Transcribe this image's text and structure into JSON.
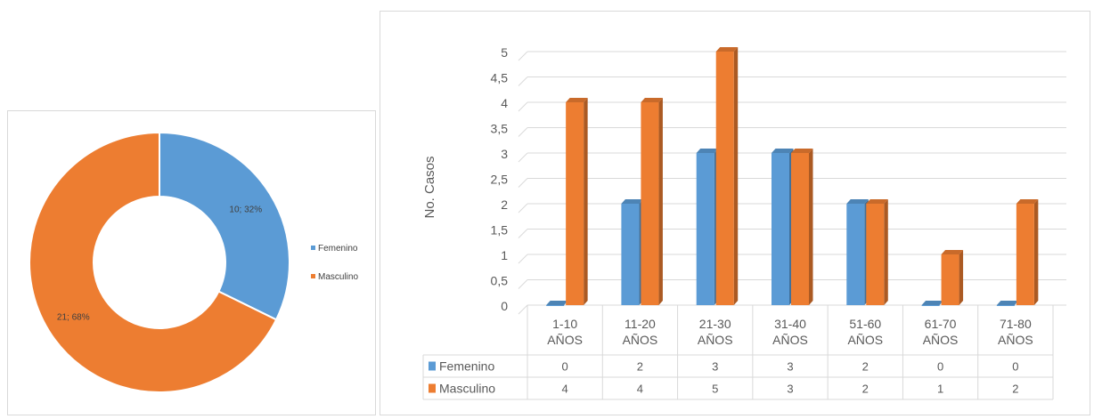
{
  "chart_data": [
    {
      "type": "pie",
      "donut": true,
      "categories": [
        "Femenino",
        "Masculino"
      ],
      "values": [
        10,
        21
      ],
      "data_labels": [
        "10; 32%",
        "21; 68%"
      ],
      "legend_position": "right",
      "colors": [
        "#5b9bd5",
        "#ed7d31"
      ]
    },
    {
      "type": "bar",
      "style": "3d-clustered-column",
      "categories": [
        "1-10 AÑOS",
        "11-20 AÑOS",
        "21-30 AÑOS",
        "31-40 AÑOS",
        "51-60 AÑOS",
        "61-70 AÑOS",
        "71-80 AÑOS"
      ],
      "category_lines": [
        [
          "1-10",
          "AÑOS"
        ],
        [
          "11-20",
          "AÑOS"
        ],
        [
          "21-30",
          "AÑOS"
        ],
        [
          "31-40",
          "AÑOS"
        ],
        [
          "51-60",
          "AÑOS"
        ],
        [
          "61-70",
          "AÑOS"
        ],
        [
          "71-80",
          "AÑOS"
        ]
      ],
      "series": [
        {
          "name": "Femenino",
          "values": [
            0,
            2,
            3,
            3,
            2,
            0,
            0
          ],
          "color": "#5b9bd5"
        },
        {
          "name": "Masculino",
          "values": [
            4,
            4,
            5,
            3,
            2,
            1,
            2
          ],
          "color": "#ed7d31"
        }
      ],
      "ylabel": "No. Casos",
      "ylim": [
        0,
        5
      ],
      "yticks": [
        "0",
        "0,5",
        "1",
        "1,5",
        "2",
        "2,5",
        "3",
        "3,5",
        "4",
        "4,5",
        "5"
      ],
      "grid": true,
      "data_table": true
    }
  ]
}
